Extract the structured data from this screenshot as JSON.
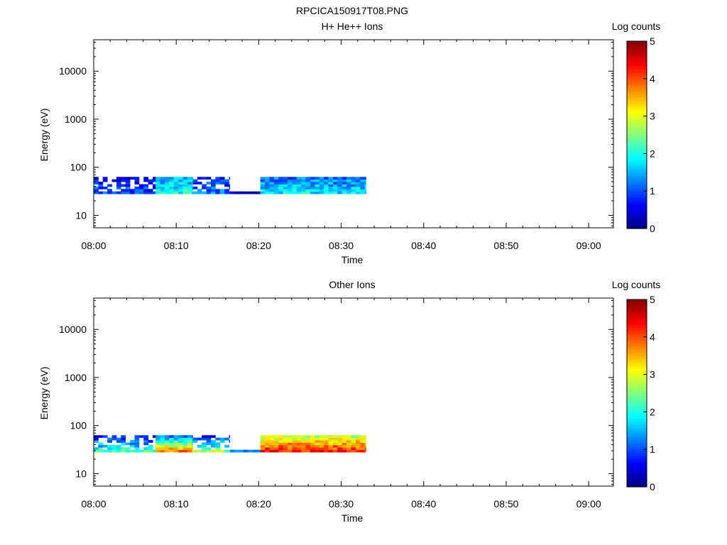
{
  "figure_title": "RPCICA150917T08.PNG",
  "chart_data": [
    {
      "type": "heatmap",
      "title": "H+ He++ Ions",
      "xlabel": "Time",
      "ylabel": "Energy (eV)",
      "x_ticks": [
        "08:00",
        "08:10",
        "08:20",
        "08:30",
        "08:40",
        "08:50",
        "09:00"
      ],
      "xlim": [
        "08:00",
        "09:03"
      ],
      "y_scale": "log",
      "ylim": [
        5.5,
        45000
      ],
      "y_ticks": [
        10,
        100,
        1000,
        10000
      ],
      "y_tick_labels": [
        "10",
        "100",
        "1000",
        "10000"
      ],
      "colorbar": {
        "label": "Log counts",
        "range": [
          0,
          5
        ],
        "ticks": [
          "0",
          "1",
          "2",
          "3",
          "4",
          "5"
        ]
      },
      "energy_band_eV": [
        28,
        63
      ],
      "data_window": [
        "08:00",
        "08:33"
      ],
      "segments": [
        {
          "start": "08:00",
          "end": "08:07.5",
          "level_low": 1.0,
          "level_high": 0.6,
          "sparse": true
        },
        {
          "start": "08:07.5",
          "end": "08:12",
          "level_low": 2.0,
          "level_high": 1.4,
          "sparse": false
        },
        {
          "start": "08:12",
          "end": "08:16.5",
          "level_low": 1.2,
          "level_high": 0.7,
          "sparse": true
        },
        {
          "start": "08:16.5",
          "end": "08:20.2",
          "level_low": 0.5,
          "level_high": null,
          "sparse": false
        },
        {
          "start": "08:20.2",
          "end": "08:33",
          "level_low": 1.8,
          "level_high": 1.2,
          "sparse": false
        }
      ],
      "grid": false
    },
    {
      "type": "heatmap",
      "title": "Other Ions",
      "xlabel": "Time",
      "ylabel": "Energy (eV)",
      "x_ticks": [
        "08:00",
        "08:10",
        "08:20",
        "08:30",
        "08:40",
        "08:50",
        "09:00"
      ],
      "xlim": [
        "08:00",
        "09:03"
      ],
      "y_scale": "log",
      "ylim": [
        5.5,
        45000
      ],
      "y_ticks": [
        10,
        100,
        1000,
        10000
      ],
      "y_tick_labels": [
        "10",
        "100",
        "1000",
        "10000"
      ],
      "colorbar": {
        "label": "Log counts",
        "range": [
          0,
          5
        ],
        "ticks": [
          "0",
          "1",
          "2",
          "3",
          "4",
          "5"
        ]
      },
      "energy_band_eV": [
        28,
        63
      ],
      "data_window": [
        "08:00",
        "08:33"
      ],
      "segments": [
        {
          "start": "08:00",
          "end": "08:07.5",
          "level_low": 2.2,
          "level_high": 0.6,
          "sparse": true
        },
        {
          "start": "08:07.5",
          "end": "08:12",
          "level_low": 3.8,
          "level_high": 1.3,
          "sparse": false
        },
        {
          "start": "08:12",
          "end": "08:16.5",
          "level_low": 2.5,
          "level_high": 0.8,
          "sparse": true
        },
        {
          "start": "08:16.5",
          "end": "08:20.2",
          "level_low": 1.0,
          "level_high": null,
          "sparse": false
        },
        {
          "start": "08:20.2",
          "end": "08:33",
          "level_low": 4.3,
          "level_high": 2.8,
          "sparse": false
        }
      ],
      "grid": false
    }
  ],
  "colors": {
    "colormap": [
      "#00007f",
      "#0000ff",
      "#007fff",
      "#00ffff",
      "#7fff7f",
      "#ffff00",
      "#ff7f00",
      "#ff0000",
      "#7f0000"
    ],
    "axis": "#000000",
    "background": "#ffffff"
  }
}
